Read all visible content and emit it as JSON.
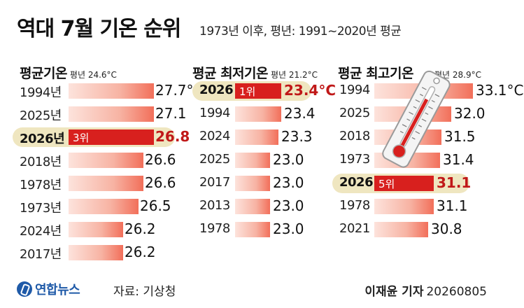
{
  "title": "역대 7월 기온 순위",
  "subtitle": "1973년 이후, 평년: 1991~2020년 평균",
  "chart_data": [
    {
      "type": "bar",
      "title": "평균기온",
      "note": "평년 24.6°C",
      "unit": "°C",
      "categories": [
        "1994년",
        "2025년",
        "2026년",
        "2018년",
        "1978년",
        "1973년",
        "2024년",
        "2017년"
      ],
      "values": [
        27.7,
        27.1,
        26.8,
        26.6,
        26.6,
        26.5,
        26.2,
        26.2
      ],
      "value_labels": [
        "27.7°C",
        "27.1",
        "26.8",
        "26.6",
        "26.6",
        "26.5",
        "26.2",
        "26.2"
      ],
      "highlight_index": 2,
      "highlight_rank": "3위"
    },
    {
      "type": "bar",
      "title": "평균 최저기온",
      "note": "평년 21.2°C",
      "unit": "°C",
      "categories": [
        "2026",
        "1994",
        "2024",
        "2025",
        "2017",
        "2013",
        "1978"
      ],
      "values": [
        23.4,
        23.4,
        23.3,
        23.0,
        23.0,
        23.0,
        23.0
      ],
      "value_labels": [
        "23.4°C",
        "23.4",
        "23.3",
        "23.0",
        "23.0",
        "23.0",
        "23.0"
      ],
      "highlight_index": 0,
      "highlight_rank": "1위"
    },
    {
      "type": "bar",
      "title": "평균 최고기온",
      "note": "평년 28.9°C",
      "unit": "°C",
      "categories": [
        "1994",
        "2025",
        "2018",
        "1973",
        "2026",
        "1978",
        "2021"
      ],
      "values": [
        33.1,
        32.0,
        31.5,
        31.4,
        31.1,
        31.1,
        30.8
      ],
      "value_labels": [
        "33.1°C",
        "32.0",
        "31.5",
        "31.4",
        "31.1",
        "31.1",
        "30.8"
      ],
      "highlight_index": 4,
      "highlight_rank": "5위"
    }
  ],
  "footer": {
    "logo": "연합뉴스",
    "source": "자료: 기상청",
    "reporter": "이재윤 기자",
    "date": "20260805"
  },
  "colors": {
    "bar_pale": "#f7b3a3",
    "bar_pale_end": "#f26f5a",
    "bar_highlight": "#d8201e",
    "highlight_pill": "#efe6c0",
    "logo": "#1f5aa8"
  }
}
